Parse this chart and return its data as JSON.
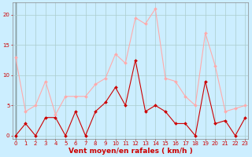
{
  "x": [
    0,
    1,
    2,
    3,
    4,
    5,
    6,
    7,
    8,
    9,
    10,
    11,
    12,
    13,
    14,
    15,
    16,
    17,
    18,
    19,
    20,
    21,
    22,
    23
  ],
  "y_avg": [
    0,
    2,
    0,
    3,
    3,
    0,
    4,
    0,
    4,
    5.5,
    8,
    5,
    12.5,
    4,
    5,
    4,
    2,
    2,
    0,
    9,
    2,
    2.5,
    0,
    3
  ],
  "y_gust": [
    13,
    4,
    5,
    9,
    3.5,
    6.5,
    6.5,
    6.5,
    8.5,
    9.5,
    13.5,
    12,
    19.5,
    18.5,
    21,
    9.5,
    9,
    6.5,
    5,
    17,
    11.5,
    4,
    4.5,
    5
  ],
  "bg_color": "#cceeff",
  "grid_color": "#aacccc",
  "line_color_avg": "#cc0000",
  "line_color_gust": "#ffaaaa",
  "marker_color_avg": "#cc0000",
  "marker_color_gust": "#ffaaaa",
  "xlabel": "Vent moyen/en rafales ( km/h )",
  "xlabel_color": "#cc0000",
  "tick_color": "#cc0000",
  "ylim": [
    -0.5,
    22
  ],
  "yticks": [
    0,
    5,
    10,
    15,
    20
  ],
  "xlim": [
    -0.3,
    23.3
  ],
  "xticks": [
    0,
    1,
    2,
    3,
    4,
    5,
    6,
    7,
    8,
    9,
    10,
    11,
    12,
    13,
    14,
    15,
    16,
    17,
    18,
    19,
    20,
    21,
    22,
    23
  ],
  "tick_fontsize": 5.0,
  "xlabel_fontsize": 6.5
}
